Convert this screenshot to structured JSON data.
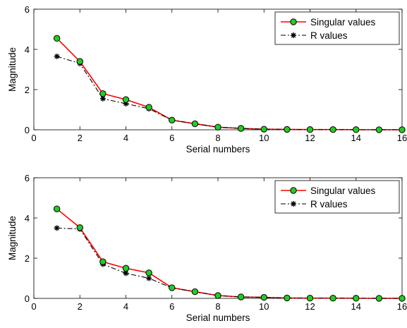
{
  "chart_data": [
    {
      "type": "line",
      "title": "",
      "xlabel": "Serial numbers",
      "ylabel": "Magnitude",
      "xlim": [
        0,
        16
      ],
      "ylim": [
        0,
        6
      ],
      "xticks": [
        "0",
        "2",
        "4",
        "6",
        "8",
        "10",
        "12",
        "14",
        "16"
      ],
      "yticks": [
        "0",
        "2",
        "4",
        "6"
      ],
      "grid": false,
      "legend_position": "top-right",
      "x": [
        1,
        2,
        3,
        4,
        5,
        6,
        7,
        8,
        9,
        10,
        11,
        12,
        13,
        14,
        15,
        16
      ],
      "series": [
        {
          "name": "Singular values",
          "color": "#ff0000",
          "marker": "circle",
          "marker_fill": "#22cc22",
          "style": "solid",
          "values": [
            4.55,
            3.4,
            1.8,
            1.5,
            1.12,
            0.48,
            0.3,
            0.13,
            0.07,
            0.03,
            0.02,
            0.01,
            0.01,
            0.005,
            0.003,
            0.001
          ]
        },
        {
          "name": "R values",
          "color": "#000000",
          "marker": "star",
          "style": "dash-dot",
          "values": [
            3.65,
            3.3,
            1.55,
            1.3,
            1.05,
            0.48,
            0.3,
            0.13,
            0.07,
            0.03,
            0.02,
            0.01,
            0.01,
            0.005,
            0.003,
            0.001
          ]
        }
      ]
    },
    {
      "type": "line",
      "title": "",
      "xlabel": "Serial numbers",
      "ylabel": "Magnitude",
      "xlim": [
        0,
        16
      ],
      "ylim": [
        0,
        6
      ],
      "xticks": [
        "0",
        "2",
        "4",
        "6",
        "8",
        "10",
        "12",
        "14",
        "16"
      ],
      "yticks": [
        "0",
        "2",
        "4",
        "6"
      ],
      "grid": false,
      "legend_position": "top-right",
      "x": [
        1,
        2,
        3,
        4,
        5,
        6,
        7,
        8,
        9,
        10,
        11,
        12,
        13,
        14,
        15,
        16
      ],
      "series": [
        {
          "name": "Singular values",
          "color": "#ff0000",
          "marker": "circle",
          "marker_fill": "#22cc22",
          "style": "solid",
          "values": [
            4.45,
            3.52,
            1.82,
            1.5,
            1.27,
            0.53,
            0.33,
            0.14,
            0.07,
            0.05,
            0.02,
            0.01,
            0.01,
            0.005,
            0.003,
            0.001
          ]
        },
        {
          "name": "R values",
          "color": "#000000",
          "marker": "star",
          "style": "dash-dot",
          "values": [
            3.5,
            3.45,
            1.7,
            1.25,
            1.0,
            0.52,
            0.33,
            0.14,
            0.07,
            0.05,
            0.02,
            0.01,
            0.01,
            0.005,
            0.003,
            0.001
          ]
        }
      ]
    }
  ]
}
